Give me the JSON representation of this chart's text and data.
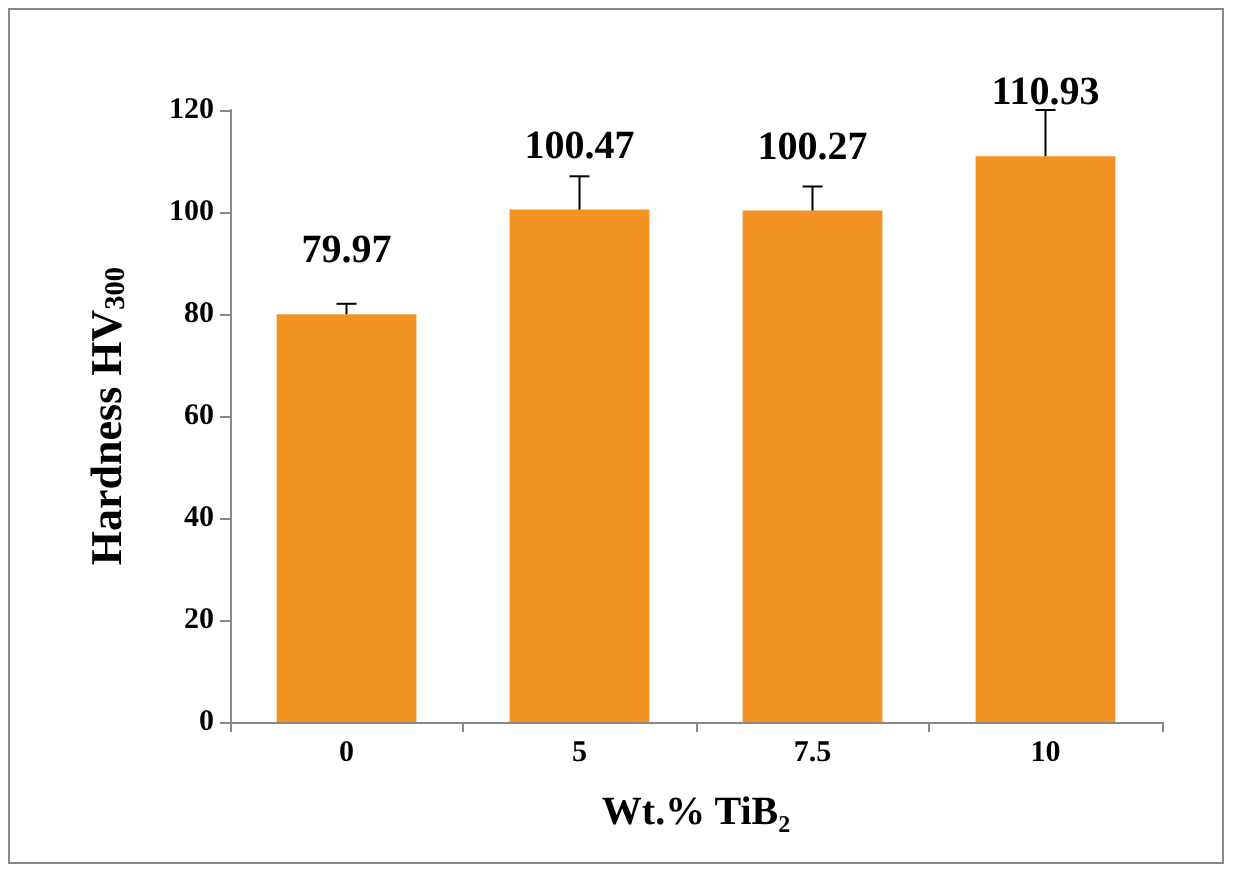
{
  "chart_data": {
    "type": "bar",
    "categories": [
      "0",
      "5",
      "7.5",
      "10"
    ],
    "values": [
      79.97,
      100.47,
      100.27,
      110.93
    ],
    "errors": [
      [
        79.97,
        82
      ],
      [
        100.47,
        107
      ],
      [
        100.27,
        105
      ],
      [
        110.93,
        120
      ]
    ],
    "color": "#f39323",
    "data_labels": true,
    "xlabel": "Wt.% TiB₂",
    "ylabel": "Hardness HV$_{300}$",
    "ylim": [
      0,
      120
    ],
    "yticks": [
      0,
      20,
      40,
      60,
      80,
      100,
      120
    ]
  }
}
